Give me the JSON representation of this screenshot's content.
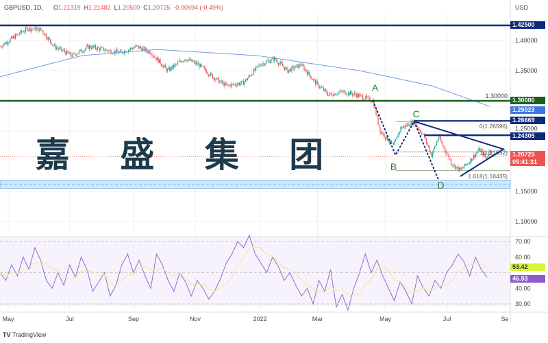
{
  "header": {
    "symbol": "GBPUSD, 1D,",
    "open": "1.21319",
    "high": "1.21482",
    "low": "1.20500",
    "close": "1.20725",
    "change": "-0.00594 (-0.49%)",
    "o": "O",
    "h": "H",
    "l": "L",
    "c": "C"
  },
  "watermark": "嘉 盛 集 团",
  "currency": "USD",
  "logo": "TradingView",
  "colors": {
    "up": "#26a69a",
    "down": "#ef5350",
    "navy": "#0d2a7a",
    "green": "#1b5e20",
    "ma": "#6f9ee0",
    "rsi": "#8e6cc9",
    "rsi_ma": "#f3e9a0"
  },
  "chart_data": {
    "type": "candlestick",
    "symbol": "GBPUSD",
    "interval": "1D",
    "y_ticks": [
      "1.40000",
      "1.35000",
      "1.30000",
      "1.25000",
      "1.15000",
      "1.10000"
    ],
    "y_tick_values": [
      1.4,
      1.35,
      1.3,
      1.25,
      1.15,
      1.1
    ],
    "ylim": [
      1.08,
      1.44
    ],
    "x_ticks": [
      "May",
      "Jul",
      "Sep",
      "Nov",
      "2022",
      "Mar",
      "May",
      "Jul",
      "Se"
    ],
    "x_tick_days": [
      8,
      68,
      130,
      190,
      253,
      309,
      375,
      435,
      492
    ],
    "close_path": [
      [
        0,
        1.39
      ],
      [
        13,
        1.405
      ],
      [
        27,
        1.42
      ],
      [
        40,
        1.418
      ],
      [
        53,
        1.39
      ],
      [
        70,
        1.375
      ],
      [
        87,
        1.39
      ],
      [
        100,
        1.385
      ],
      [
        117,
        1.38
      ],
      [
        133,
        1.39
      ],
      [
        147,
        1.38
      ],
      [
        163,
        1.35
      ],
      [
        180,
        1.37
      ],
      [
        193,
        1.36
      ],
      [
        207,
        1.34
      ],
      [
        220,
        1.325
      ],
      [
        237,
        1.33
      ],
      [
        253,
        1.36
      ],
      [
        267,
        1.37
      ],
      [
        280,
        1.35
      ],
      [
        293,
        1.36
      ],
      [
        307,
        1.33
      ],
      [
        320,
        1.31
      ],
      [
        333,
        1.315
      ],
      [
        347,
        1.31
      ],
      [
        363,
        1.3
      ],
      [
        370,
        1.25
      ],
      [
        383,
        1.225
      ],
      [
        390,
        1.255
      ],
      [
        403,
        1.265
      ],
      [
        413,
        1.24
      ],
      [
        420,
        1.21
      ],
      [
        427,
        1.24
      ],
      [
        440,
        1.195
      ],
      [
        448,
        1.185
      ],
      [
        457,
        1.2
      ],
      [
        467,
        1.22
      ],
      [
        473,
        1.205
      ],
      [
        477,
        1.22
      ],
      [
        479,
        1.207
      ]
    ],
    "ma200_path": [
      [
        0,
        1.34
      ],
      [
        80,
        1.375
      ],
      [
        153,
        1.385
      ],
      [
        250,
        1.375
      ],
      [
        350,
        1.35
      ],
      [
        420,
        1.325
      ],
      [
        478,
        1.29
      ]
    ],
    "levels": [
      {
        "price": 1.425,
        "label": "1.42500",
        "kind": "navy"
      },
      {
        "price": 1.3,
        "label": "1.30000",
        "kind": "green"
      },
      {
        "price": 1.26669,
        "label": "1.26669",
        "kind": "navy"
      },
      {
        "price": 1.24305,
        "label": "1.24305",
        "kind": "navy"
      }
    ],
    "ma_label": "1.29023",
    "last_price": "1.20725",
    "countdown": "05:41:31",
    "fib": [
      {
        "price": 1.26596,
        "label": "0(1.26596)"
      },
      {
        "price": 1.21552,
        "label": "1(1.21552)"
      },
      {
        "price": 1.18435,
        "label": "1.618(1.18435)"
      }
    ],
    "zone": [
      1.155,
      1.168
    ],
    "abcd": [
      {
        "name": "A",
        "day": 363,
        "price": 1.3
      },
      {
        "name": "B",
        "day": 385,
        "price": 1.21
      },
      {
        "name": "C",
        "day": 403,
        "price": 1.266
      },
      {
        "name": "D",
        "day": 427,
        "price": 1.168
      }
    ],
    "triangle": {
      "top_start": [
        403,
        1.266
      ],
      "apex": [
        490,
        1.22
      ],
      "bottom_start": [
        448,
        1.175
      ]
    },
    "rsi": {
      "ticks": [
        "70.00",
        "60.00",
        "40.00",
        "30.00"
      ],
      "tick_values": [
        70,
        60,
        40,
        30
      ],
      "value": "46.93",
      "ma_value": "53.42",
      "values": [
        50,
        45,
        55,
        48,
        60,
        52,
        66,
        58,
        45,
        40,
        50,
        42,
        55,
        47,
        60,
        52,
        38,
        44,
        50,
        35,
        42,
        55,
        62,
        50,
        58,
        48,
        40,
        62,
        55,
        45,
        38,
        50,
        44,
        35,
        45,
        40,
        33,
        38,
        46,
        56,
        62,
        70,
        66,
        74,
        62,
        56,
        50,
        60,
        54,
        45,
        50,
        42,
        35,
        40,
        30,
        45,
        38,
        52,
        28,
        36,
        26,
        40,
        50,
        62,
        50,
        58,
        48,
        40,
        32,
        44,
        38,
        30,
        48,
        40,
        35,
        45,
        40,
        50,
        55,
        62,
        57,
        48,
        60,
        52,
        47
      ]
    }
  }
}
